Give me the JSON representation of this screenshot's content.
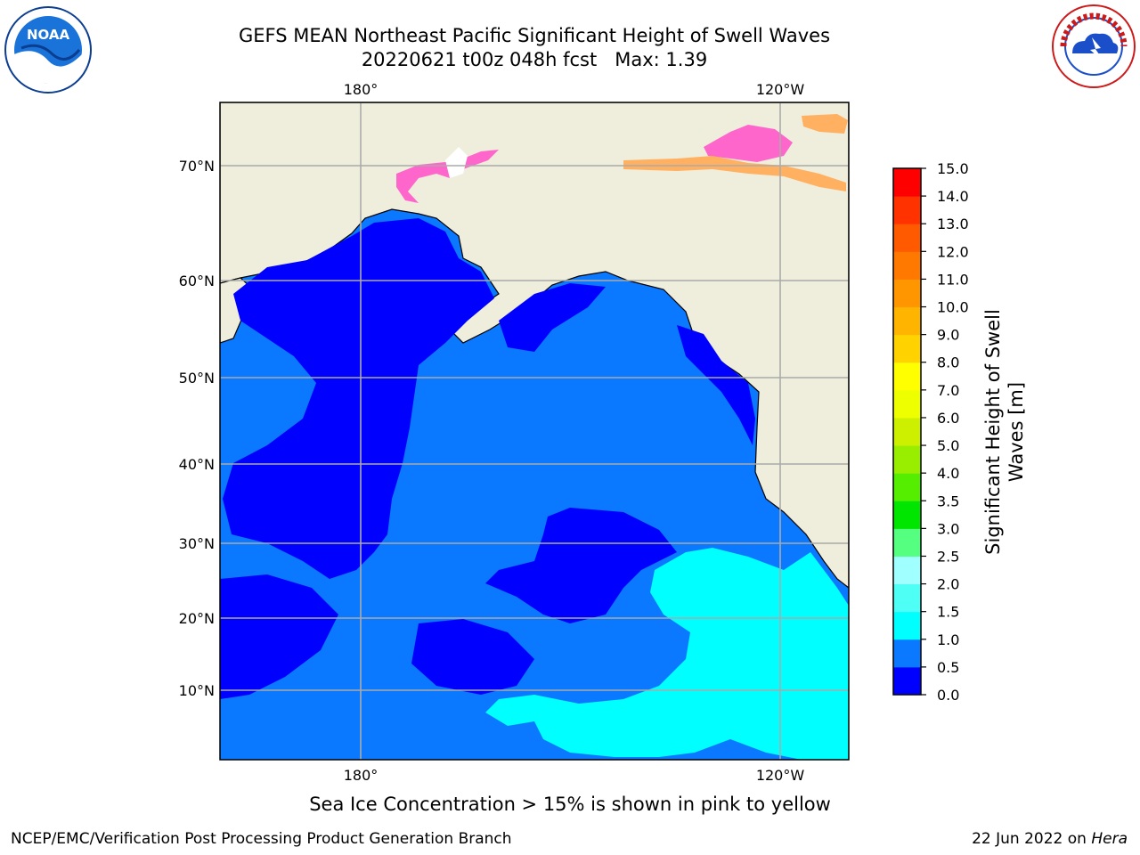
{
  "title": {
    "line1": "GEFS MEAN Northeast Pacific Significant Height of Swell Waves",
    "line2_prefix": "20220621 t00z 048h fcst",
    "line2_max": "Max: 1.39"
  },
  "axes": {
    "lon_top": [
      "180°",
      "120°W"
    ],
    "lon_bottom": [
      "180°",
      "120°W"
    ],
    "lat": [
      "70°N",
      "60°N",
      "50°N",
      "40°N",
      "30°N",
      "20°N",
      "10°N"
    ]
  },
  "colorbar": {
    "title_line1": "Significant Height of Swell",
    "title_line2": "Waves [m]",
    "ticks": [
      "0.0",
      "0.5",
      "1.0",
      "1.5",
      "2.0",
      "2.5",
      "3.0",
      "3.5",
      "4.0",
      "5.0",
      "6.0",
      "7.0",
      "8.0",
      "9.0",
      "10.0",
      "11.0",
      "12.0",
      "13.0",
      "14.0",
      "15.0"
    ],
    "colors": [
      "#0000ff",
      "#0a78ff",
      "#00ffff",
      "#4dfff4",
      "#a0ffff",
      "#55ff80",
      "#00e600",
      "#55ee00",
      "#99ee00",
      "#ccf000",
      "#eeff00",
      "#ffff00",
      "#ffd200",
      "#ffb400",
      "#ff9600",
      "#ff7800",
      "#ff5a00",
      "#ff3200",
      "#ff0000"
    ]
  },
  "colors": {
    "land": "#efeedd",
    "ocean_low": "#0000ff",
    "ocean_mid": "#0a78ff",
    "ocean_high": "#00ffff",
    "ice": "#ff66cc",
    "ice2": "#ffb060",
    "grid": "#aaaaaa"
  },
  "logos": {
    "noaa": "NOAA",
    "nws": "NATIONAL WEATHER SERVICE"
  },
  "note": "Sea Ice Concentration > 15% is shown in pink to yellow",
  "footer": {
    "left": "NCEP/EMC/Verification Post Processing Product Generation Branch",
    "right_prefix": "22 Jun 2022 on ",
    "right_host": "Hera"
  }
}
